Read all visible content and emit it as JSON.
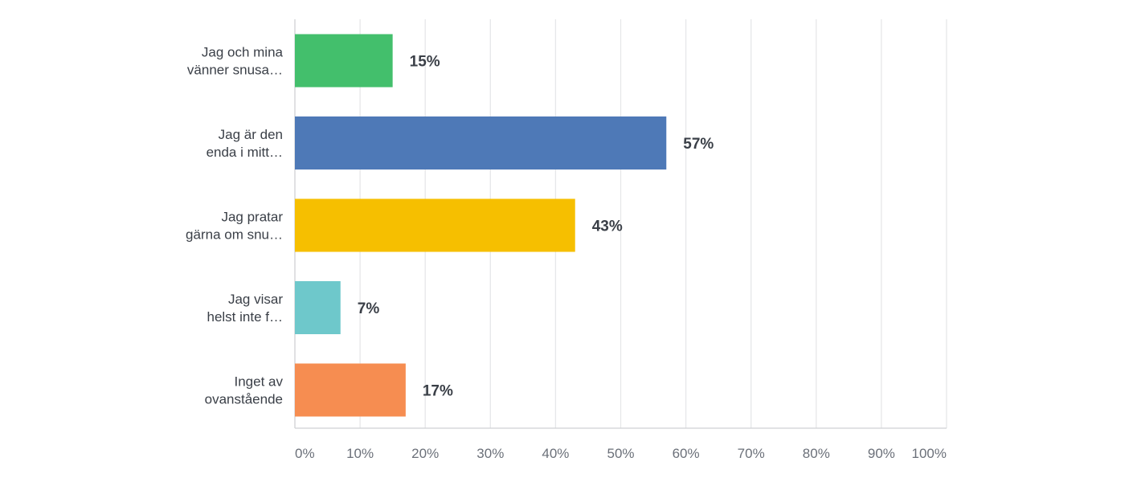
{
  "chart_data": {
    "type": "bar",
    "orientation": "horizontal",
    "categories": [
      [
        "Jag och mina",
        "vänner snusa…"
      ],
      [
        "Jag är den",
        "enda i mitt…"
      ],
      [
        "Jag pratar",
        "gärna om snu…"
      ],
      [
        "Jag visar",
        "helst inte f…"
      ],
      [
        "Inget av",
        "ovanstående"
      ]
    ],
    "values": [
      15,
      57,
      43,
      7,
      17
    ],
    "value_labels": [
      "15%",
      "57%",
      "43%",
      "7%",
      "17%"
    ],
    "colors": [
      "#43bf6c",
      "#4e79b7",
      "#f6bf00",
      "#6ec8cb",
      "#f68d51"
    ],
    "xlim": [
      0,
      100
    ],
    "x_ticks": [
      0,
      10,
      20,
      30,
      40,
      50,
      60,
      70,
      80,
      90,
      100
    ],
    "x_tick_labels": [
      "0%",
      "10%",
      "20%",
      "30%",
      "40%",
      "50%",
      "60%",
      "70%",
      "80%",
      "90%",
      "100%"
    ],
    "grid": true,
    "title": "",
    "xlabel": "",
    "ylabel": ""
  }
}
